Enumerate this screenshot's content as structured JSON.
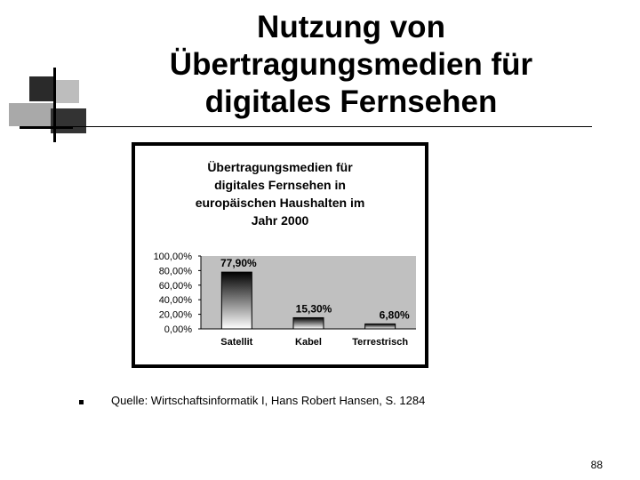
{
  "slide": {
    "title_lines": [
      "Nutzung von",
      "Übertragungsmedien für",
      "digitales Fernsehen"
    ],
    "source": "Quelle: Wirtschaftsinformatik I, Hans Robert Hansen, S. 1284",
    "page_number": "88"
  },
  "chart_data": {
    "type": "bar",
    "title_lines": [
      "Übertragungsmedien für",
      "digitales Fernsehen in",
      "europäischen Haushalten im",
      "Jahr 2000"
    ],
    "categories": [
      "Satellit",
      "Kabel",
      "Terrestrisch"
    ],
    "values": [
      77.9,
      15.3,
      6.8
    ],
    "data_labels": [
      "77,90%",
      "15,30%",
      "6,80%"
    ],
    "yticks": [
      "0,00%",
      "20,00%",
      "40,00%",
      "60,00%",
      "80,00%",
      "100,00%"
    ],
    "ylim": [
      0,
      100
    ],
    "xlabel": "",
    "ylabel": "",
    "grid": false,
    "legend": "none",
    "colors": {
      "plot_background": "#c0c0c0",
      "bar_top": "#000000",
      "bar_bottom": "#ffffff",
      "frame": "#000000"
    }
  }
}
